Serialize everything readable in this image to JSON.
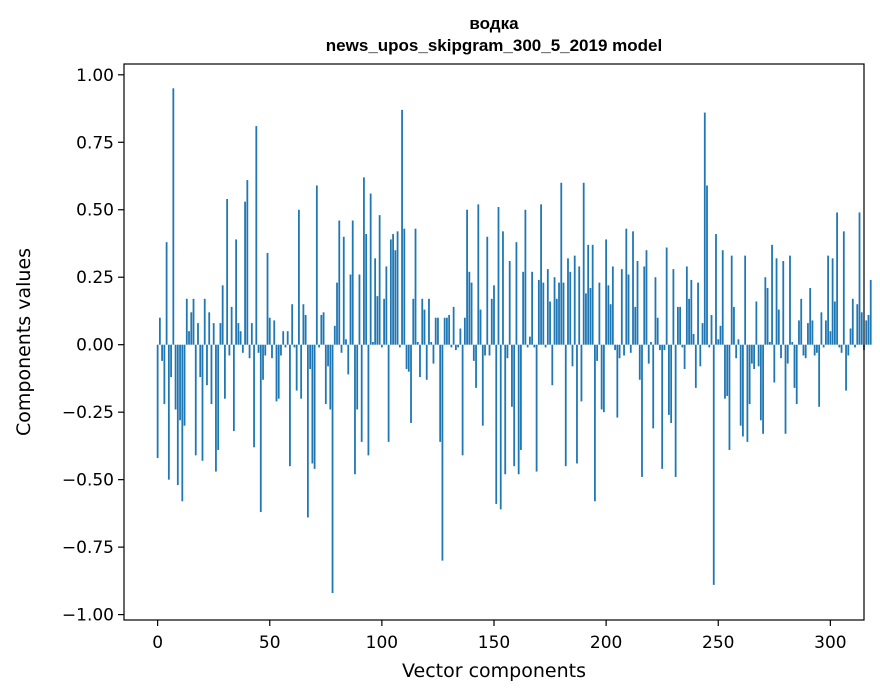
{
  "chart_data": {
    "type": "bar",
    "title": "водка",
    "subtitle": "news_upos_skipgram_300_5_2019 model",
    "xlabel": "Vector components",
    "ylabel": "Components values",
    "xlim": [
      -15,
      315
    ],
    "ylim": [
      -1.02,
      1.04
    ],
    "xticks": [
      0,
      50,
      100,
      150,
      200,
      250,
      300
    ],
    "xtick_labels": [
      "0",
      "50",
      "100",
      "150",
      "200",
      "250",
      "300"
    ],
    "yticks": [
      1.0,
      0.75,
      0.5,
      0.25,
      0.0,
      -0.25,
      -0.5,
      -0.75,
      -1.0
    ],
    "ytick_labels": [
      "1.00",
      "0.75",
      "0.50",
      "0.25",
      "0.00",
      "−0.25",
      "−0.50",
      "−0.75",
      "−1.00"
    ],
    "grid": false,
    "bar_color": "#1f77b4",
    "series": [
      {
        "name": "водка",
        "values": [
          -0.42,
          0.1,
          -0.06,
          -0.22,
          0.38,
          -0.5,
          -0.12,
          0.95,
          -0.24,
          -0.52,
          -0.28,
          -0.58,
          -0.3,
          0.17,
          0.05,
          0.12,
          0.17,
          -0.41,
          0.08,
          -0.12,
          -0.43,
          0.17,
          -0.15,
          0.12,
          -0.22,
          0.08,
          -0.47,
          -0.39,
          0.08,
          0.22,
          -0.2,
          0.54,
          -0.04,
          0.14,
          -0.32,
          0.39,
          0.08,
          0.05,
          -0.03,
          0.53,
          0.61,
          -0.05,
          0.08,
          -0.38,
          0.81,
          -0.03,
          -0.62,
          -0.13,
          -0.04,
          0.34,
          0.1,
          -0.05,
          0.09,
          -0.21,
          -0.2,
          -0.04,
          0.05,
          -0.01,
          0.05,
          -0.45,
          0.15,
          -0.01,
          -0.17,
          0.5,
          -0.2,
          0.15,
          0.11,
          -0.64,
          -0.09,
          -0.44,
          -0.46,
          0.59,
          -0.01,
          0.11,
          0.12,
          -0.22,
          -0.08,
          -0.24,
          -0.92,
          0.07,
          0.23,
          0.46,
          -0.03,
          0.4,
          0.02,
          -0.11,
          0.26,
          0.46,
          -0.48,
          -0.24,
          0.26,
          -0.36,
          0.62,
          0.41,
          -0.41,
          0.56,
          0.01,
          0.32,
          0.18,
          0.48,
          -0.01,
          0.17,
          0.29,
          -0.36,
          0.39,
          0.41,
          0.35,
          0.42,
          -0.01,
          0.87,
          0.43,
          -0.09,
          -0.1,
          -0.29,
          0.17,
          0.43,
          0.01,
          -0.12,
          0.17,
          0.13,
          -0.13,
          0.17,
          0.01,
          -0.07,
          0.1,
          0.1,
          -0.36,
          -0.8,
          0.1,
          0.1,
          0.11,
          -0.01,
          0.14,
          -0.02,
          -0.01,
          0.06,
          -0.41,
          0.1,
          0.5,
          0.27,
          0.23,
          -0.06,
          -0.16,
          0.52,
          0.13,
          -0.3,
          -0.04,
          0.4,
          -0.04,
          0.17,
          0.22,
          -0.59,
          0.51,
          -0.61,
          0.42,
          -0.48,
          -0.05,
          0.31,
          -0.23,
          -0.45,
          0.38,
          -0.48,
          -0.39,
          0.27,
          0.5,
          -0.01,
          0.03,
          0.27,
          -0.01,
          -0.47,
          0.24,
          0.52,
          0.23,
          -0.01,
          0.28,
          0.16,
          -0.15,
          0.25,
          0.17,
          0.23,
          0.6,
          0.23,
          -0.45,
          0.32,
          0.27,
          -0.08,
          0.33,
          -0.44,
          0.29,
          -0.21,
          0.6,
          0.19,
          0.37,
          0.21,
          0.37,
          -0.58,
          -0.06,
          0.23,
          -0.24,
          -0.25,
          0.39,
          0.22,
          0.15,
          0.29,
          -0.02,
          -0.27,
          -0.05,
          0.28,
          -0.04,
          0.43,
          0.26,
          -0.03,
          0.42,
          0.14,
          0.31,
          -0.13,
          -0.49,
          0.29,
          0.35,
          -0.07,
          0.01,
          -0.31,
          0.25,
          0.1,
          -0.02,
          -0.46,
          -0.02,
          0.36,
          -0.26,
          -0.29,
          0.28,
          -0.49,
          0.14,
          0.14,
          -0.01,
          -0.09,
          0.29,
          0.17,
          0.24,
          0.04,
          -0.16,
          0.23,
          -0.08,
          0.08,
          0.86,
          0.59,
          -0.01,
          0.11,
          -0.89,
          0.41,
          0.02,
          0.07,
          0.35,
          -0.2,
          -0.19,
          -0.39,
          0.33,
          0.14,
          -0.05,
          0.02,
          -0.3,
          -0.34,
          0.33,
          -0.36,
          -0.22,
          -0.07,
          -0.09,
          0.16,
          -0.08,
          -0.28,
          -0.33,
          0.25,
          0.21,
          0.01,
          0.37,
          -0.14,
          0.32,
          0.13,
          -0.05,
          0.31,
          -0.33,
          -0.07,
          0.33,
          0.01,
          -0.16,
          -0.22,
          0.09,
          0.17,
          -0.04,
          -0.05,
          0.08,
          0.21,
          0.09,
          -0.04,
          -0.03,
          -0.23,
          0.12,
          -0.01,
          0.09,
          0.33,
          0.05,
          0.32,
          0.16,
          0.49,
          -0.01,
          -0.03,
          0.42,
          -0.17,
          -0.04,
          0.06,
          0.17,
          -0.01,
          0.15,
          0.49,
          0.12,
          -0.02,
          0.09,
          0.11,
          0.24
        ]
      }
    ]
  }
}
